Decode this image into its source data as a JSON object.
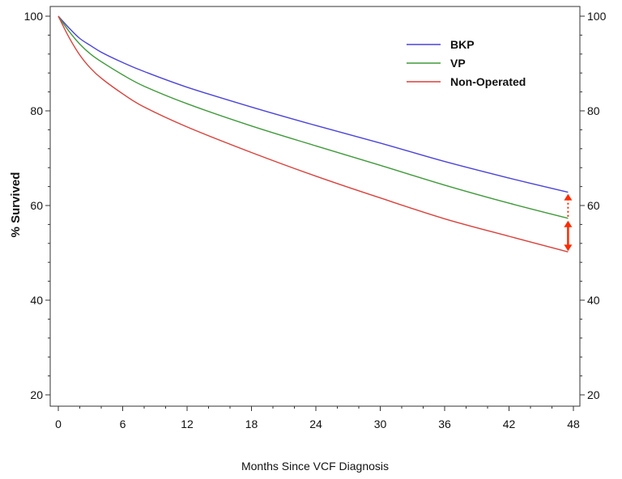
{
  "chart_data": {
    "type": "line",
    "title": "",
    "xlabel": "Months Since VCF Diagnosis",
    "ylabel": "% Survived",
    "xlim": [
      0,
      48
    ],
    "ylim": [
      20,
      100
    ],
    "xticks": [
      0,
      6,
      12,
      18,
      24,
      30,
      36,
      42,
      48
    ],
    "yticks": [
      20,
      40,
      60,
      80,
      100
    ],
    "grid": false,
    "legend_position": "top-right",
    "x": [
      0,
      1,
      2,
      3,
      4,
      6,
      8,
      12,
      18,
      24,
      30,
      36,
      42,
      47.5
    ],
    "series": [
      {
        "name": "BKP",
        "color": "#4b44d9",
        "values": [
          100,
          97.5,
          95.3,
          93.8,
          92.4,
          90.2,
          88.3,
          85.0,
          80.8,
          76.9,
          73.2,
          69.3,
          65.8,
          62.8
        ]
      },
      {
        "name": "VP",
        "color": "#3f9a3a",
        "values": [
          100,
          96.8,
          94.1,
          92.0,
          90.4,
          87.6,
          85.2,
          81.5,
          76.8,
          72.6,
          68.5,
          64.3,
          60.5,
          57.3
        ]
      },
      {
        "name": "Non-Operated",
        "color": "#d9413b",
        "values": [
          100,
          95.5,
          91.8,
          89.0,
          86.9,
          83.6,
          80.8,
          76.6,
          71.2,
          66.2,
          61.6,
          57.2,
          53.5,
          50.2
        ]
      }
    ],
    "annotations": {
      "color": "#ff2a00",
      "x": 47.5,
      "dotted_arrow": {
        "from": 57.3,
        "to": 62.8
      },
      "double_arrow": {
        "from": 50.2,
        "to": 57.3
      }
    }
  }
}
